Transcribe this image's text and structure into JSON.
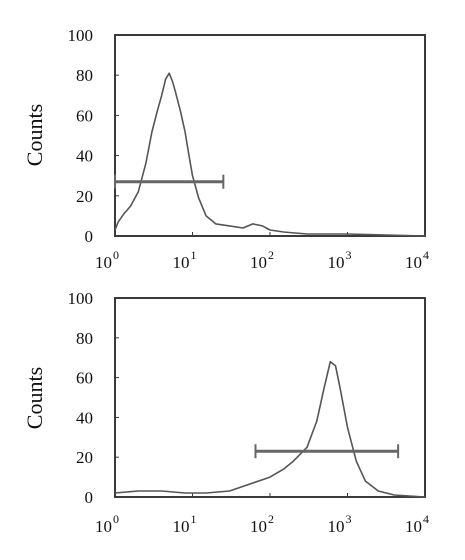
{
  "chart_data": [
    {
      "type": "line",
      "title": "",
      "xlabel": "",
      "ylabel": "Counts",
      "x_scale": "log",
      "xlim": [
        1,
        10000
      ],
      "ylim": [
        0,
        100
      ],
      "grid": false,
      "y_ticks": [
        "0",
        "20",
        "40",
        "60",
        "80",
        "100"
      ],
      "x_ticks": [
        {
          "base": "10",
          "exp": "0"
        },
        {
          "base": "10",
          "exp": "1"
        },
        {
          "base": "10",
          "exp": "2"
        },
        {
          "base": "10",
          "exp": "3"
        },
        {
          "base": "10",
          "exp": "4"
        }
      ],
      "series": [
        {
          "x": [
            1,
            1.1,
            1.3,
            1.6,
            2,
            2.5,
            3,
            3.5,
            4,
            4.5,
            5,
            5.5,
            6,
            7,
            8,
            9,
            10,
            12,
            15,
            20,
            30,
            45,
            60,
            80,
            100,
            150,
            300,
            1000,
            10000
          ],
          "y": [
            3,
            7,
            11,
            15,
            22,
            36,
            52,
            62,
            70,
            78,
            81,
            77,
            72,
            62,
            52,
            40,
            30,
            19,
            10,
            6,
            5,
            4,
            6,
            5,
            3,
            2,
            1,
            1,
            0
          ]
        }
      ],
      "marker": {
        "x_start": 1,
        "x_end": 25,
        "y": 27
      }
    },
    {
      "type": "line",
      "title": "",
      "xlabel": "",
      "ylabel": "Counts",
      "x_scale": "log",
      "xlim": [
        1,
        10000
      ],
      "ylim": [
        0,
        100
      ],
      "grid": false,
      "y_ticks": [
        "0",
        "20",
        "40",
        "60",
        "80",
        "100"
      ],
      "x_ticks": [
        {
          "base": "10",
          "exp": "0"
        },
        {
          "base": "10",
          "exp": "1"
        },
        {
          "base": "10",
          "exp": "2"
        },
        {
          "base": "10",
          "exp": "3"
        },
        {
          "base": "10",
          "exp": "4"
        }
      ],
      "series": [
        {
          "x": [
            1,
            2,
            4,
            8,
            15,
            30,
            50,
            100,
            150,
            200,
            300,
            400,
            500,
            600,
            700,
            800,
            1000,
            1300,
            1700,
            2500,
            4000,
            10000
          ],
          "y": [
            2,
            3,
            3,
            2,
            2,
            3,
            6,
            10,
            14,
            18,
            25,
            38,
            55,
            68,
            66,
            55,
            35,
            18,
            8,
            3,
            1,
            0
          ]
        }
      ],
      "marker": {
        "x_start": 65,
        "x_end": 4500,
        "y": 23
      }
    }
  ]
}
